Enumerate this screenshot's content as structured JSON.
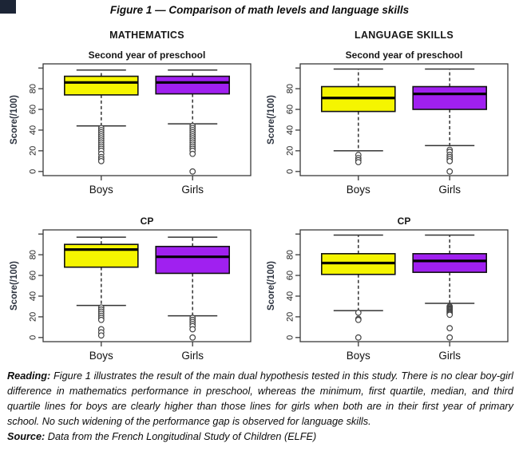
{
  "figure_title": "Figure 1 — Comparison of math levels and language skills",
  "panels": {
    "math": "MATHEMATICS",
    "language": "LANGUAGE SKILLS"
  },
  "chart_data": {
    "type": "boxplot",
    "categories": [
      "Boys",
      "Girls"
    ],
    "yticks": [
      0,
      20,
      40,
      60,
      80
    ],
    "ylim": [
      0,
      100
    ],
    "grid": false,
    "colors": {
      "boys_box": "#f5f500",
      "girls_box": "#a020f0",
      "median": "#000000"
    },
    "charts": [
      {
        "panel": "MATHEMATICS",
        "title": "Second year of preschool",
        "ylabel": "Score(/100)",
        "series": [
          {
            "name": "Boys",
            "color": "#f5f500",
            "whisker_low": 44,
            "q1": 74,
            "median": 86,
            "q3": 92,
            "whisker_high": 98,
            "outliers": [
              42,
              40,
              38,
              36,
              34,
              32,
              30,
              28,
              26,
              24,
              22,
              20,
              17,
              14,
              12,
              10
            ]
          },
          {
            "name": "Girls",
            "color": "#a020f0",
            "whisker_low": 46,
            "q1": 75,
            "median": 86,
            "q3": 92,
            "whisker_high": 98,
            "outliers": [
              44,
              42,
              40,
              38,
              36,
              34,
              32,
              30,
              28,
              26,
              24,
              22,
              20,
              17,
              0
            ]
          }
        ]
      },
      {
        "panel": "LANGUAGE SKILLS",
        "title": "Second year of preschool",
        "ylabel": "Score(/100)",
        "series": [
          {
            "name": "Boys",
            "color": "#f5f500",
            "whisker_low": 20,
            "q1": 58,
            "median": 71,
            "q3": 82,
            "whisker_high": 99,
            "outliers": [
              16,
              13,
              11,
              9
            ]
          },
          {
            "name": "Girls",
            "color": "#a020f0",
            "whisker_low": 25,
            "q1": 60,
            "median": 75,
            "q3": 82,
            "whisker_high": 99,
            "outliers": [
              21,
              19,
              16,
              14,
              12,
              10,
              0
            ]
          }
        ]
      },
      {
        "panel": "MATHEMATICS",
        "title": "CP",
        "ylabel": "Score(/100)",
        "series": [
          {
            "name": "Boys",
            "color": "#f5f500",
            "whisker_low": 31,
            "q1": 68,
            "median": 85,
            "q3": 90,
            "whisker_high": 97,
            "outliers": [
              29,
              27,
              25,
              23,
              21,
              19,
              17,
              8,
              5,
              2
            ]
          },
          {
            "name": "Girls",
            "color": "#a020f0",
            "whisker_low": 21,
            "q1": 62,
            "median": 78,
            "q3": 88,
            "whisker_high": 97,
            "outliers": [
              19,
              17,
              15,
              13,
              11,
              8,
              0
            ]
          }
        ]
      },
      {
        "panel": "LANGUAGE SKILLS",
        "title": "CP",
        "ylabel": "Score(/100)",
        "series": [
          {
            "name": "Boys",
            "color": "#f5f500",
            "whisker_low": 26,
            "q1": 61,
            "median": 72,
            "q3": 81,
            "whisker_high": 99,
            "outliers": [
              24,
              18,
              17,
              0
            ]
          },
          {
            "name": "Girls",
            "color": "#a020f0",
            "whisker_low": 33,
            "q1": 63,
            "median": 74,
            "q3": 81,
            "whisker_high": 99,
            "outliers": [
              30,
              29,
              28,
              27,
              26,
              25,
              24,
              23,
              22,
              9,
              0
            ]
          }
        ]
      }
    ]
  },
  "caption": {
    "reading_label": "Reading:",
    "reading_text": "Figure 1 illustrates the result of the main dual hypothesis tested in this study. There is no clear boy-girl difference in mathematics performance in preschool, whereas the minimum, first quartile, median, and third quartile lines for boys are clearly higher than those lines for girls when both are in their first year of primary school. No such widening of the performance gap is observed for language skills.",
    "source_label": "Source:",
    "source_text": "Data from the French Longitudinal Study of Children (ELFE)"
  }
}
